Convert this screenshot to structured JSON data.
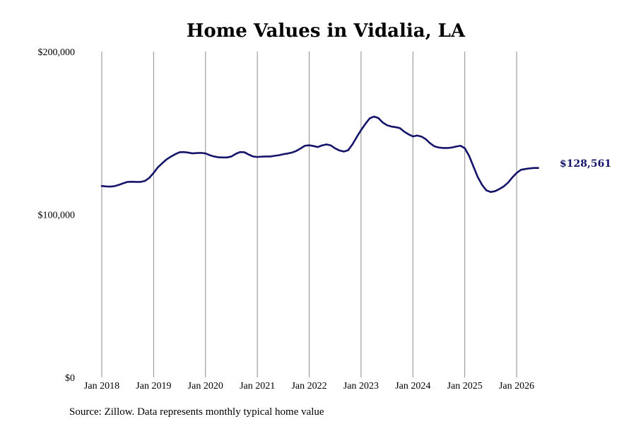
{
  "chart_data": {
    "type": "line",
    "title": "Home Values in Vidalia, LA",
    "ylim": [
      0,
      200000
    ],
    "y_ticks": [
      {
        "value": 0,
        "label": "$0"
      },
      {
        "value": 100000,
        "label": "$100,000"
      },
      {
        "value": 200000,
        "label": "$200,000"
      }
    ],
    "x_range": [
      "2018-01",
      "2026-09"
    ],
    "x_ticks": [
      {
        "date": "2018-01",
        "label": "Jan 2018"
      },
      {
        "date": "2019-01",
        "label": "Jan 2019"
      },
      {
        "date": "2020-01",
        "label": "Jan 2020"
      },
      {
        "date": "2021-01",
        "label": "Jan 2021"
      },
      {
        "date": "2022-01",
        "label": "Jan 2022"
      },
      {
        "date": "2023-01",
        "label": "Jan 2023"
      },
      {
        "date": "2024-01",
        "label": "Jan 2024"
      },
      {
        "date": "2025-01",
        "label": "Jan 2025"
      },
      {
        "date": "2026-01",
        "label": "Jan 2026"
      }
    ],
    "grid": "vertical lines at x ticks",
    "series": [
      {
        "color": "#14146b",
        "points": [
          [
            "2018-01",
            117500
          ],
          [
            "2018-02",
            117200
          ],
          [
            "2018-03",
            117100
          ],
          [
            "2018-04",
            117400
          ],
          [
            "2018-05",
            118200
          ],
          [
            "2018-06",
            119200
          ],
          [
            "2018-07",
            120000
          ],
          [
            "2018-08",
            120100
          ],
          [
            "2018-09",
            120000
          ],
          [
            "2018-10",
            120000
          ],
          [
            "2018-11",
            120600
          ],
          [
            "2018-12",
            122500
          ],
          [
            "2019-01",
            125500
          ],
          [
            "2019-02",
            129000
          ],
          [
            "2019-03",
            131500
          ],
          [
            "2019-04",
            133800
          ],
          [
            "2019-05",
            135500
          ],
          [
            "2019-06",
            137000
          ],
          [
            "2019-07",
            138200
          ],
          [
            "2019-08",
            138300
          ],
          [
            "2019-09",
            138000
          ],
          [
            "2019-10",
            137500
          ],
          [
            "2019-11",
            137700
          ],
          [
            "2019-12",
            137800
          ],
          [
            "2020-01",
            137500
          ],
          [
            "2020-02",
            136400
          ],
          [
            "2020-03",
            135600
          ],
          [
            "2020-04",
            135100
          ],
          [
            "2020-05",
            135000
          ],
          [
            "2020-06",
            135000
          ],
          [
            "2020-07",
            135600
          ],
          [
            "2020-08",
            137200
          ],
          [
            "2020-09",
            138300
          ],
          [
            "2020-10",
            138200
          ],
          [
            "2020-11",
            136800
          ],
          [
            "2020-12",
            135600
          ],
          [
            "2021-01",
            135300
          ],
          [
            "2021-02",
            135500
          ],
          [
            "2021-03",
            135600
          ],
          [
            "2021-04",
            135600
          ],
          [
            "2021-05",
            136000
          ],
          [
            "2021-06",
            136400
          ],
          [
            "2021-07",
            137000
          ],
          [
            "2021-08",
            137400
          ],
          [
            "2021-09",
            138000
          ],
          [
            "2021-10",
            139000
          ],
          [
            "2021-11",
            140500
          ],
          [
            "2021-12",
            142200
          ],
          [
            "2022-01",
            142500
          ],
          [
            "2022-02",
            142000
          ],
          [
            "2022-03",
            141400
          ],
          [
            "2022-04",
            142400
          ],
          [
            "2022-05",
            143000
          ],
          [
            "2022-06",
            142400
          ],
          [
            "2022-07",
            140600
          ],
          [
            "2022-08",
            139300
          ],
          [
            "2022-09",
            138600
          ],
          [
            "2022-10",
            139400
          ],
          [
            "2022-11",
            143000
          ],
          [
            "2022-12",
            147500
          ],
          [
            "2023-01",
            151800
          ],
          [
            "2023-02",
            155600
          ],
          [
            "2023-03",
            159000
          ],
          [
            "2023-04",
            160100
          ],
          [
            "2023-05",
            159200
          ],
          [
            "2023-06",
            156500
          ],
          [
            "2023-07",
            154800
          ],
          [
            "2023-08",
            154000
          ],
          [
            "2023-09",
            153600
          ],
          [
            "2023-10",
            153000
          ],
          [
            "2023-11",
            150800
          ],
          [
            "2023-12",
            149200
          ],
          [
            "2024-01",
            147900
          ],
          [
            "2024-02",
            148500
          ],
          [
            "2024-03",
            147800
          ],
          [
            "2024-04",
            146200
          ],
          [
            "2024-05",
            143700
          ],
          [
            "2024-06",
            141800
          ],
          [
            "2024-07",
            141100
          ],
          [
            "2024-08",
            140800
          ],
          [
            "2024-09",
            140800
          ],
          [
            "2024-10",
            141100
          ],
          [
            "2024-11",
            141700
          ],
          [
            "2024-12",
            142200
          ],
          [
            "2025-01",
            140700
          ],
          [
            "2025-02",
            136000
          ],
          [
            "2025-03",
            129500
          ],
          [
            "2025-04",
            123000
          ],
          [
            "2025-05",
            118200
          ],
          [
            "2025-06",
            114800
          ],
          [
            "2025-07",
            113800
          ],
          [
            "2025-08",
            114300
          ],
          [
            "2025-09",
            115600
          ],
          [
            "2025-10",
            117200
          ],
          [
            "2025-11",
            119500
          ],
          [
            "2025-12",
            122700
          ],
          [
            "2026-01",
            125500
          ],
          [
            "2026-02",
            127400
          ],
          [
            "2026-03",
            127900
          ],
          [
            "2026-04",
            128300
          ],
          [
            "2026-05",
            128561
          ],
          [
            "2026-06",
            128561
          ]
        ]
      }
    ],
    "end_label": "$128,561",
    "end_label_color": "#14146b",
    "source": "Source: Zillow. Data represents monthly typical home value"
  }
}
